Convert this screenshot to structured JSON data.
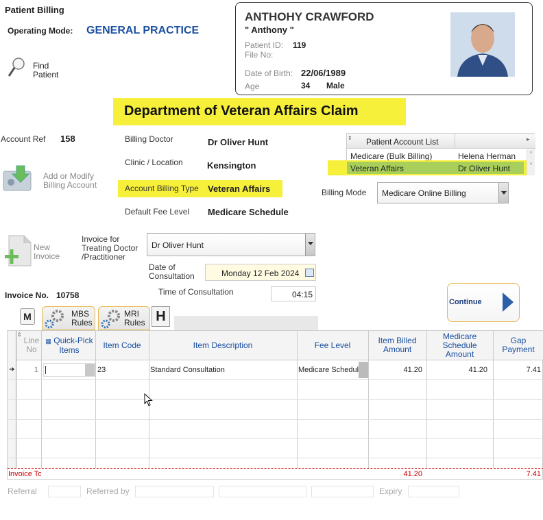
{
  "header": {
    "title": "Patient Billing",
    "op_mode_label": "Operating Mode:",
    "op_mode_value": "GENERAL PRACTICE",
    "find_label_1": "Find",
    "find_label_2": "Patient"
  },
  "patient": {
    "name": "ANTHOHY CRAWFORD",
    "nickname": "\" Anthony \"",
    "id_label": "Patient ID:",
    "id_value": "119",
    "file_label": "File No:",
    "dob_label": "Date of Birth:",
    "dob_value": "22/06/1989",
    "age_label": "Age",
    "age_value": "34",
    "sex": "Male"
  },
  "claim_title": "Department of Veteran Affairs Claim",
  "account": {
    "ref_label": "Account Ref",
    "ref_value": "158",
    "add_label_1": "Add or Modify",
    "add_label_2": "Billing Account"
  },
  "billing": {
    "doctor_label": "Billing Doctor",
    "doctor_value": "Dr Oliver Hunt",
    "clinic_label": "Clinic / Location",
    "clinic_value": "Kensington",
    "type_label": "Account Billing Type",
    "type_value": "Veteran Affairs",
    "fee_label": "Default Fee Level",
    "fee_value": "Medicare Schedule"
  },
  "account_list": {
    "header": "Patient Account List",
    "rows": [
      {
        "type": "Medicare (Bulk Billing)",
        "doctor": "Helena Herman"
      },
      {
        "type": "Veteran Affairs",
        "doctor": "Dr Oliver Hunt"
      }
    ]
  },
  "billing_mode": {
    "label": "Billing Mode",
    "value": "Medicare Online Billing"
  },
  "invoice": {
    "new_label_1": "New",
    "new_label_2": "Invoice",
    "for_label_1": "Invoice for",
    "for_label_2": "Treating Doctor",
    "for_label_3": "/Practitioner",
    "doctor_value": "Dr Oliver Hunt",
    "date_label_1": "Date of",
    "date_label_2": "Consultation",
    "date_value": "Monday 12 Feb 2024",
    "time_label": "Time of Consultation",
    "time_value": "04:15",
    "no_label": "Invoice No.",
    "no_value": "10758",
    "continue_label": "Continue"
  },
  "tabs": {
    "m": "M",
    "mbs_1": "MBS",
    "mbs_2": "Rules",
    "mri_1": "MRI",
    "mri_2": "Rules",
    "h": "H"
  },
  "grid": {
    "headers": {
      "line_1": "Line",
      "line_2": "No",
      "quick_1": "Quick-Pick",
      "quick_2": "Items",
      "item_code": "Item Code",
      "item_desc": "Item Description",
      "fee_level": "Fee Level",
      "billed_1": "Item Billed",
      "billed_2": "Amount",
      "sched_1": "Medicare",
      "sched_2": "Schedule",
      "sched_3": "Amount",
      "gap_1": "Gap",
      "gap_2": "Payment"
    },
    "row": {
      "line": "1",
      "code": "23",
      "desc": "Standard Consultation",
      "fee": "Medicare Schedule",
      "billed": "41.20",
      "sched": "41.20",
      "gap": "7.41"
    },
    "totals": {
      "label": "Invoice To",
      "billed": "41.20",
      "gap": "7.41"
    }
  },
  "footer": {
    "referral": "Referral",
    "referred_by": "Referred by",
    "expiry": "Expiry"
  },
  "colors": {
    "highlight": "#f7f03a",
    "accent_blue": "#1a4fa0",
    "total_red": "#cc0000"
  }
}
